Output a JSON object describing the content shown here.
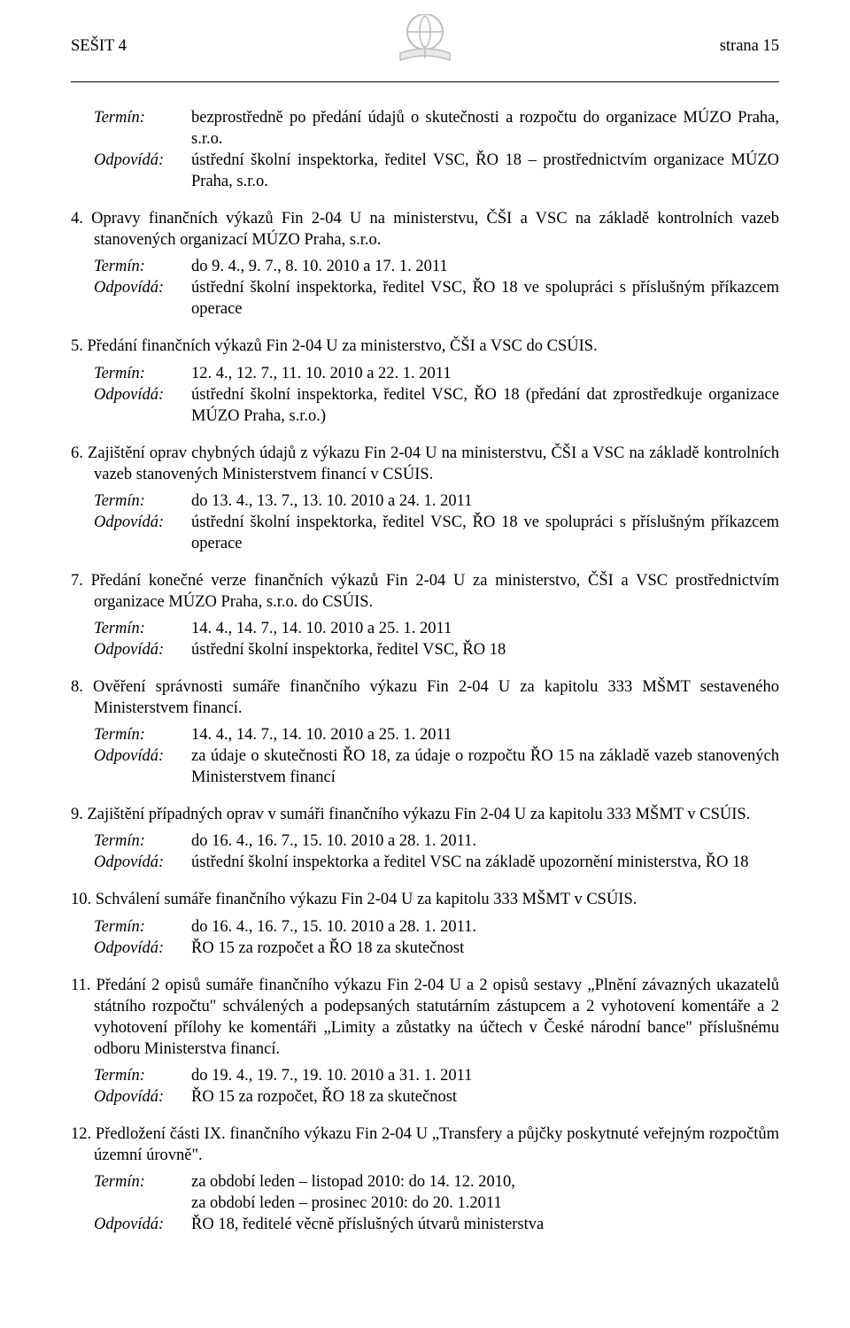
{
  "header": {
    "left": "SEŠIT 4",
    "right": "strana 15"
  },
  "top_block": {
    "termin_label": "Termín:",
    "termin_value": "bezprostředně po předání údajů o skutečnosti a rozpočtu do organizace MÚZO Praha, s.r.o.",
    "odpovida_label": "Odpovídá:",
    "odpovida_value": "ústřední školní inspektorka, ředitel VSC, ŘO 18 – prostřednictvím organizace MÚZO Praha, s.r.o."
  },
  "items": [
    {
      "num": "4.",
      "text": "Opravy finančních výkazů Fin 2-04 U na ministerstvu, ČŠI a VSC na základě kontrolních vazeb stanovených organizací MÚZO Praha, s.r.o.",
      "termin_label": "Termín:",
      "termin_value": "do 9. 4., 9. 7., 8. 10. 2010 a 17. 1. 2011",
      "odpovida_label": "Odpovídá:",
      "odpovida_value": "ústřední školní inspektorka, ředitel VSC, ŘO 18 ve spolupráci s příslušným příkazcem operace"
    },
    {
      "num": "5.",
      "text": "Předání finančních výkazů Fin 2-04 U za ministerstvo, ČŠI a VSC do CSÚIS.",
      "termin_label": "Termín:",
      "termin_value": "12. 4., 12. 7., 11. 10. 2010 a 22. 1. 2011",
      "odpovida_label": "Odpovídá:",
      "odpovida_value": "ústřední školní inspektorka, ředitel VSC, ŘO 18 (předání dat zprostředkuje organizace MÚZO Praha, s.r.o.)"
    },
    {
      "num": "6.",
      "text": "Zajištění oprav chybných údajů z výkazu Fin 2-04 U na ministerstvu, ČŠI a VSC na základě kontrolních vazeb stanovených Ministerstvem financí v CSÚIS.",
      "termin_label": "Termín:",
      "termin_value": "do 13. 4., 13. 7., 13. 10. 2010 a 24. 1. 2011",
      "odpovida_label": "Odpovídá:",
      "odpovida_value": "ústřední školní inspektorka, ředitel VSC, ŘO 18 ve spolupráci s příslušným příkazcem operace"
    },
    {
      "num": "7.",
      "text": "Předání konečné verze finančních výkazů Fin 2-04 U za ministerstvo, ČŠI a VSC prostřednictvím organizace MÚZO Praha, s.r.o. do CSÚIS.",
      "termin_label": "Termín:",
      "termin_value": "14. 4., 14. 7., 14. 10. 2010 a 25. 1. 2011",
      "odpovida_label": "Odpovídá:",
      "odpovida_value": "ústřední školní inspektorka, ředitel VSC, ŘO 18"
    },
    {
      "num": "8.",
      "text": "Ověření správnosti sumáře finančního výkazu Fin 2-04 U za kapitolu 333 MŠMT sestaveného Ministerstvem financí.",
      "termin_label": "Termín:",
      "termin_value": "14. 4., 14. 7., 14. 10. 2010 a 25. 1. 2011",
      "odpovida_label": "Odpovídá:",
      "odpovida_value": "za údaje o skutečnosti ŘO 18, za údaje o rozpočtu ŘO 15 na základě vazeb stanovených Ministerstvem financí"
    },
    {
      "num": " 9.",
      "text": "Zajištění případných oprav v sumáři finančního výkazu Fin 2-04 U za kapitolu 333 MŠMT v CSÚIS.",
      "termin_label": "Termín:",
      "termin_value": "do 16. 4., 16. 7., 15. 10. 2010 a 28. 1. 2011.",
      "odpovida_label": "Odpovídá:",
      "odpovida_value": "ústřední školní inspektorka a ředitel VSC na základě upozornění ministerstva, ŘO 18"
    },
    {
      "num": "10.",
      "text": "Schválení sumáře finančního výkazu Fin 2-04 U za kapitolu 333 MŠMT v CSÚIS.",
      "termin_label": "Termín:",
      "termin_value": "do 16. 4., 16. 7., 15. 10. 2010 a 28. 1. 2011.",
      "odpovida_label": "Odpovídá:",
      "odpovida_value": "ŘO 15 za rozpočet a ŘO 18 za skutečnost"
    },
    {
      "num": "11.",
      "text": "Předání 2 opisů sumáře finančního výkazu Fin 2-04 U a 2 opisů sestavy „Plnění závazných ukazatelů státního rozpočtu\" schválených a podepsaných statutárním zástupcem a 2 vyhotovení komentáře a 2 vyhotovení přílohy ke komentáři „Limity a zůstatky na účtech v České národní bance\" příslušnému odboru Ministerstva financí.",
      "termin_label": "Termín:",
      "termin_value": "do 19. 4., 19. 7., 19. 10. 2010 a 31. 1. 2011",
      "odpovida_label": "Odpovídá:",
      "odpovida_value": "ŘO 15 za rozpočet, ŘO 18 za skutečnost"
    },
    {
      "num": "12.",
      "text": "Předložení části IX. finančního výkazu Fin 2-04 U „Transfery a půjčky poskytnuté veřejným rozpočtům územní úrovně\".",
      "termin_label": "Termín:",
      "termin_value_lines": [
        "za období leden – listopad 2010: do 14. 12. 2010,",
        "za období leden – prosinec 2010: do 20. 1.2011"
      ],
      "odpovida_label": "Odpovídá:",
      "odpovida_value": "ŘO 18, ředitelé věcně příslušných útvarů ministerstva"
    }
  ]
}
